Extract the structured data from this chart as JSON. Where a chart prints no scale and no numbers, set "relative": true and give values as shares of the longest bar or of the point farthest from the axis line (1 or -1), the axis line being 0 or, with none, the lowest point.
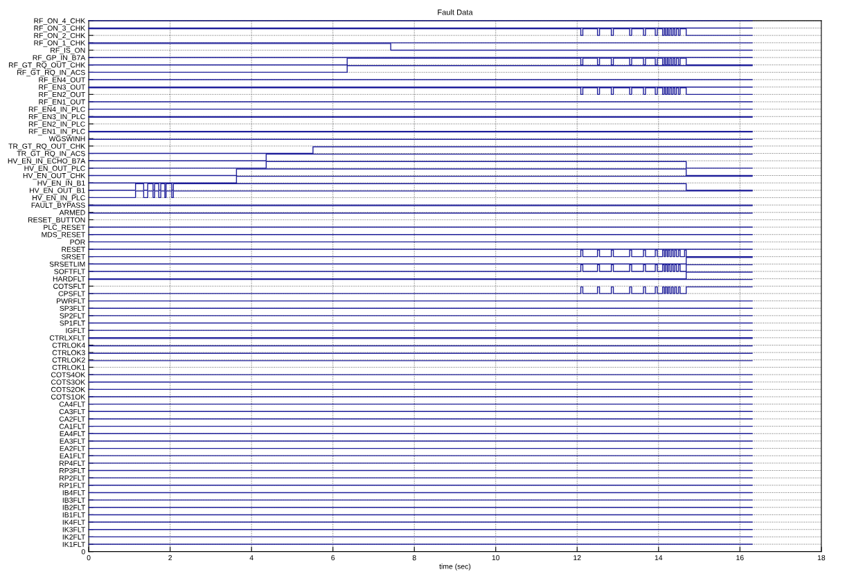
{
  "chart_data": {
    "type": "step",
    "title": "Fault Data",
    "xlabel": "time (sec)",
    "color": "#1f1f9a",
    "grid": true,
    "line_style": "solid",
    "relative": true,
    "xlim": [
      0,
      18
    ],
    "xticks": [
      0,
      2,
      4,
      6,
      8,
      10,
      12,
      14,
      16,
      18
    ],
    "y_categories": [
      "RF_ON_4_CHK",
      "RF_ON_3_CHK",
      "RF_ON_2_CHK",
      "RF_ON_1_CHK",
      "RF_IS_ON",
      "RF_GP_IN_B7A",
      "RF_GT_RQ_OUT_CHK",
      "RF_GT_RQ_IN_ACS",
      "RF_EN4_OUT",
      "RF_EN3_OUT",
      "RF_EN2_OUT",
      "RF_EN1_OUT",
      "RF_EN4_IN_PLC",
      "RF_EN3_IN_PLC",
      "RF_EN2_IN_PLC",
      "RF_EN1_IN_PLC",
      "WGSWINH",
      "TR_GT_RQ_OUT_CHK",
      "TR_GT_RQ_IN_ACS",
      "HV_EN_IN_ECHO_B7A",
      "HV_EN_OUT_PLC",
      "HV_EN_OUT_CHK",
      "HV_EN_IN_B1",
      "HV_EN_OUT_B1",
      "HV_EN_IN_PLC",
      "FAULT_BYPASS",
      "ARMED",
      "RESET_BUTTON",
      "PLC_RESET",
      "MDS_RESET",
      "POR",
      "RESET",
      "SRSET",
      "SRSETLIM",
      "SOFTFLT",
      "HARDFLT",
      "COTSFLT",
      "CPSFLT",
      "PWRFLT",
      "SP3FLT",
      "SP2FLT",
      "SP1FLT",
      "IGFLT",
      "CTRLXFLT",
      "CTRLOK4",
      "CTRLOK3",
      "CTRLOK2",
      "CTRLOK1",
      "COTS4OK",
      "COTS3OK",
      "COTS2OK",
      "COTS1OK",
      "CA4FLT",
      "CA3FLT",
      "CA2FLT",
      "CA1FLT",
      "EA4FLT",
      "EA3FLT",
      "EA2FLT",
      "EA1FLT",
      "RP4FLT",
      "RP3FLT",
      "RP2FLT",
      "RP1FLT",
      "IB4FLT",
      "IB3FLT",
      "IB2FLT",
      "IB1FLT",
      "IK4FLT",
      "IK3FLT",
      "IK2FLT",
      "IK1FLT",
      "0"
    ],
    "x": [
      0,
      16.3
    ],
    "series": [
      {
        "values": [
          1,
          1
        ]
      },
      {
        "values": [
          0.9861,
          0.9861
        ]
      },
      {
        "x": [
          0,
          12.09,
          12.14,
          12.5,
          12.55,
          12.84,
          12.89,
          13.29,
          13.34,
          13.63,
          13.68,
          13.92,
          13.97,
          14.1,
          14.14,
          14.17,
          14.21,
          14.24,
          14.28,
          14.32,
          14.36,
          14.4,
          14.44,
          14.49,
          14.53,
          14.68,
          16.3
        ],
        "values": [
          0.9847,
          0.9722,
          0.9847,
          0.9722,
          0.9847,
          0.9722,
          0.9847,
          0.9722,
          0.9847,
          0.9722,
          0.9847,
          0.9722,
          0.9847,
          0.9722,
          0.9847,
          0.9722,
          0.9847,
          0.9722,
          0.9847,
          0.9722,
          0.9847,
          0.9722,
          0.9847,
          0.9722,
          0.9847,
          0.9722,
          0.9722
        ]
      },
      {
        "values": [
          0.9583,
          0.9583
        ]
      },
      {
        "x": [
          0,
          7.42,
          16.3
        ],
        "values": [
          0.9569,
          0.9444,
          0.9444
        ]
      },
      {
        "values": [
          0.9306,
          0.9306
        ]
      },
      {
        "x": [
          0,
          6.35,
          12.09,
          12.14,
          12.5,
          12.55,
          12.84,
          12.89,
          13.29,
          13.34,
          13.63,
          13.68,
          13.92,
          13.97,
          14.1,
          14.14,
          14.17,
          14.21,
          14.24,
          14.28,
          14.32,
          14.36,
          14.4,
          14.44,
          14.49,
          14.53,
          14.68,
          16.3
        ],
        "values": [
          0.9167,
          0.9292,
          0.9167,
          0.9292,
          0.9167,
          0.9292,
          0.9167,
          0.9292,
          0.9167,
          0.9292,
          0.9167,
          0.9292,
          0.9167,
          0.9292,
          0.9167,
          0.9292,
          0.9167,
          0.9292,
          0.9167,
          0.9292,
          0.9167,
          0.9292,
          0.9167,
          0.9292,
          0.9167,
          0.9292,
          0.9167,
          0.9167
        ]
      },
      {
        "x": [
          0,
          6.35,
          16.3
        ],
        "values": [
          0.9028,
          0.9153,
          0.9153
        ]
      },
      {
        "values": [
          0.8889,
          0.8889
        ]
      },
      {
        "values": [
          0.875,
          0.875
        ]
      },
      {
        "x": [
          0,
          12.09,
          12.14,
          12.5,
          12.55,
          12.84,
          12.89,
          13.29,
          13.34,
          13.63,
          13.68,
          13.92,
          13.97,
          14.1,
          14.14,
          14.17,
          14.21,
          14.24,
          14.28,
          14.32,
          14.36,
          14.4,
          14.44,
          14.49,
          14.53,
          14.68,
          16.3
        ],
        "values": [
          0.8736,
          0.8611,
          0.8736,
          0.8611,
          0.8736,
          0.8611,
          0.8736,
          0.8611,
          0.8736,
          0.8611,
          0.8736,
          0.8611,
          0.8736,
          0.8611,
          0.8736,
          0.8611,
          0.8736,
          0.8611,
          0.8736,
          0.8611,
          0.8736,
          0.8611,
          0.8736,
          0.8611,
          0.8736,
          0.8611,
          0.8611
        ]
      },
      {
        "values": [
          0.8472,
          0.8472
        ]
      },
      {
        "values": [
          0.8333,
          0.8333
        ]
      },
      {
        "values": [
          0.8194,
          0.8194
        ]
      },
      {
        "values": [
          0.8181,
          0.8181
        ]
      },
      {
        "values": [
          0.7917,
          0.7917
        ]
      },
      {
        "values": [
          0.7903,
          0.7903
        ]
      },
      {
        "values": [
          0.7764,
          0.7764
        ]
      },
      {
        "x": [
          0,
          5.51,
          16.3
        ],
        "values": [
          0.75,
          0.7625,
          0.7625
        ]
      },
      {
        "x": [
          0,
          4.36,
          16.3
        ],
        "values": [
          0.7361,
          0.7486,
          0.7486
        ]
      },
      {
        "x": [
          0,
          4.36,
          14.68,
          16.3
        ],
        "values": [
          0.7222,
          0.7347,
          0.7222,
          0.7222
        ]
      },
      {
        "x": [
          0,
          3.63,
          14.68,
          16.3
        ],
        "values": [
          0.7083,
          0.7208,
          0.7083,
          0.7083
        ]
      },
      {
        "x": [
          0,
          3.63,
          16.3
        ],
        "values": [
          0.6944,
          0.7069,
          0.7069
        ]
      },
      {
        "x": [
          0,
          1.15,
          1.35,
          1.45,
          1.58,
          1.62,
          1.72,
          1.77,
          1.87,
          1.9,
          2.04,
          2.08,
          14.68,
          16.3
        ],
        "values": [
          0.6806,
          0.6931,
          0.6806,
          0.6931,
          0.6806,
          0.6931,
          0.6806,
          0.6931,
          0.6806,
          0.6931,
          0.6806,
          0.6931,
          0.6806,
          0.6806
        ]
      },
      {
        "x": [
          0,
          1.15,
          1.35,
          1.45,
          1.58,
          1.62,
          1.72,
          1.77,
          1.87,
          1.9,
          2.04,
          2.08,
          16.3
        ],
        "values": [
          0.6667,
          0.6792,
          0.6667,
          0.6792,
          0.6667,
          0.6792,
          0.6667,
          0.6792,
          0.6667,
          0.6792,
          0.6667,
          0.6792,
          0.6792
        ]
      },
      {
        "values": [
          0.6528,
          0.6528
        ]
      },
      {
        "values": [
          0.6514,
          0.6514
        ]
      },
      {
        "values": [
          0.6375,
          0.6375
        ]
      },
      {
        "values": [
          0.6111,
          0.6111
        ]
      },
      {
        "values": [
          0.5972,
          0.5972
        ]
      },
      {
        "values": [
          0.5833,
          0.5833
        ]
      },
      {
        "values": [
          0.5694,
          0.5694
        ]
      },
      {
        "x": [
          0,
          12.09,
          12.14,
          12.5,
          12.55,
          12.84,
          12.89,
          13.29,
          13.34,
          13.63,
          13.68,
          13.92,
          13.97,
          14.1,
          14.14,
          14.17,
          14.21,
          14.24,
          14.28,
          14.32,
          14.36,
          14.4,
          14.44,
          14.49,
          14.53,
          14.64,
          14.68,
          16.3
        ],
        "values": [
          0.5556,
          0.5681,
          0.5556,
          0.5681,
          0.5556,
          0.5681,
          0.5556,
          0.5681,
          0.5556,
          0.5681,
          0.5556,
          0.5681,
          0.5556,
          0.5681,
          0.5556,
          0.5681,
          0.5556,
          0.5681,
          0.5556,
          0.5681,
          0.5556,
          0.5681,
          0.5556,
          0.5681,
          0.5556,
          0.5681,
          0.5556,
          0.5556
        ]
      },
      {
        "x": [
          0,
          14.68,
          16.3
        ],
        "values": [
          0.5417,
          0.5542,
          0.5542
        ]
      },
      {
        "x": [
          0,
          12.09,
          12.14,
          12.5,
          12.55,
          12.84,
          12.89,
          13.29,
          13.34,
          13.63,
          13.68,
          13.92,
          13.97,
          14.1,
          14.14,
          14.17,
          14.21,
          14.24,
          14.28,
          14.32,
          14.36,
          14.4,
          14.44,
          14.49,
          14.53,
          14.68,
          16.3
        ],
        "values": [
          0.5278,
          0.5403,
          0.5278,
          0.5403,
          0.5278,
          0.5403,
          0.5278,
          0.5403,
          0.5278,
          0.5403,
          0.5278,
          0.5403,
          0.5278,
          0.5403,
          0.5278,
          0.5403,
          0.5278,
          0.5403,
          0.5278,
          0.5403,
          0.5278,
          0.5403,
          0.5278,
          0.5403,
          0.5278,
          0.5403,
          0.5403
        ]
      },
      {
        "x": [
          0,
          14.68,
          16.3
        ],
        "values": [
          0.5139,
          0.5264,
          0.5264
        ]
      },
      {
        "values": [
          0.5125,
          0.5125
        ]
      },
      {
        "x": [
          0,
          12.09,
          12.14,
          12.5,
          12.55,
          12.84,
          12.89,
          13.29,
          13.34,
          13.63,
          13.68,
          13.92,
          13.97,
          14.1,
          14.14,
          14.17,
          14.21,
          14.24,
          14.28,
          14.32,
          14.36,
          14.4,
          14.44,
          14.49,
          14.53,
          14.68,
          16.3
        ],
        "values": [
          0.4861,
          0.4986,
          0.4861,
          0.4986,
          0.4861,
          0.4986,
          0.4861,
          0.4986,
          0.4861,
          0.4986,
          0.4861,
          0.4986,
          0.4861,
          0.4986,
          0.4861,
          0.4986,
          0.4861,
          0.4986,
          0.4861,
          0.4986,
          0.4861,
          0.4986,
          0.4861,
          0.4986,
          0.4861,
          0.4986,
          0.4986
        ]
      },
      {
        "values": [
          0.4722,
          0.4722
        ]
      },
      {
        "values": [
          0.4583,
          0.4583
        ]
      },
      {
        "values": [
          0.4444,
          0.4444
        ]
      },
      {
        "values": [
          0.4306,
          0.4306
        ]
      },
      {
        "values": [
          0.4167,
          0.4167
        ]
      },
      {
        "values": [
          0.4028,
          0.4028
        ]
      },
      {
        "values": [
          0.4014,
          0.4014
        ]
      },
      {
        "values": [
          0.3875,
          0.3875
        ]
      },
      {
        "values": [
          0.3736,
          0.3736
        ]
      },
      {
        "values": [
          0.3597,
          0.3597
        ]
      },
      {
        "values": [
          0.3333,
          0.3333
        ]
      },
      {
        "values": [
          0.3194,
          0.3194
        ]
      },
      {
        "values": [
          0.3056,
          0.3056
        ]
      },
      {
        "values": [
          0.2917,
          0.2917
        ]
      },
      {
        "values": [
          0.2778,
          0.2778
        ]
      },
      {
        "values": [
          0.2639,
          0.2639
        ]
      },
      {
        "values": [
          0.25,
          0.25
        ]
      },
      {
        "values": [
          0.2361,
          0.2361
        ]
      },
      {
        "values": [
          0.2222,
          0.2222
        ]
      },
      {
        "values": [
          0.2083,
          0.2083
        ]
      },
      {
        "values": [
          0.1944,
          0.1944
        ]
      },
      {
        "values": [
          0.1806,
          0.1806
        ]
      },
      {
        "values": [
          0.1667,
          0.1667
        ]
      },
      {
        "values": [
          0.1528,
          0.1528
        ]
      },
      {
        "values": [
          0.1389,
          0.1389
        ]
      },
      {
        "values": [
          0.125,
          0.125
        ]
      },
      {
        "values": [
          0.1111,
          0.1111
        ]
      },
      {
        "values": [
          0.0972,
          0.0972
        ]
      },
      {
        "values": [
          0.0833,
          0.0833
        ]
      },
      {
        "values": [
          0.0694,
          0.0694
        ]
      },
      {
        "values": [
          0.0556,
          0.0556
        ]
      },
      {
        "values": [
          0.0417,
          0.0417
        ]
      },
      {
        "values": [
          0.0278,
          0.0278
        ]
      },
      {
        "values": [
          0.0139,
          0.0139
        ]
      }
    ]
  }
}
